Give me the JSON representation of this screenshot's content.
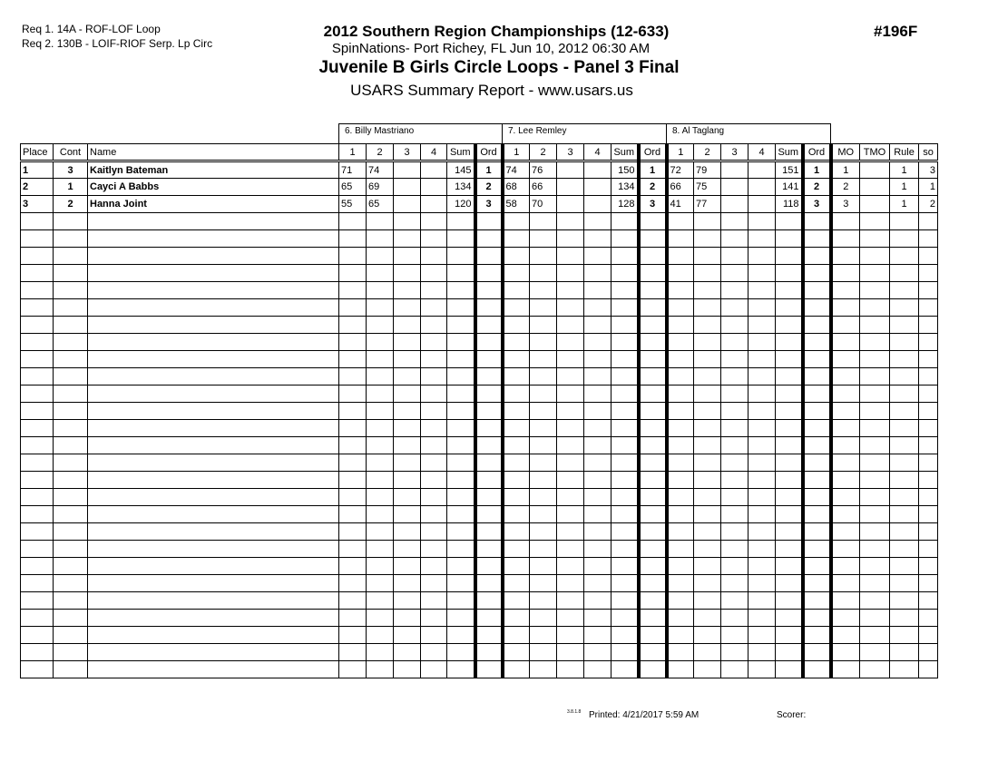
{
  "header": {
    "req1": "Req  1.  14A - ROF-LOF Loop",
    "req2": "Req  2.  130B - LOIF-RIOF Serp. Lp Circ",
    "title": "2012 Southern Region Championships (12-633)",
    "location": "SpinNations- Port Richey, FL  Jun 10, 2012  06:30 AM",
    "event": "Juvenile B Girls Circle Loops - Panel 3 Final",
    "report": "USARS Summary Report - www.usars.us",
    "event_number": "#196F"
  },
  "judges": [
    "6.  Billy Mastriano",
    "7.  Lee Remley",
    "8.  Al Taglang"
  ],
  "columns": {
    "place": "Place",
    "cont": "Cont",
    "name": "Name",
    "s1": "1",
    "s2": "2",
    "s3": "3",
    "s4": "4",
    "sum": "Sum",
    "ord": "Ord",
    "mo": "MO",
    "tmo": "TMO",
    "rule": "Rule",
    "so": "so"
  },
  "rows": [
    {
      "place": "1",
      "cont": "3",
      "name": "Kaitlyn Bateman",
      "j": [
        [
          "71",
          "74",
          "",
          "",
          "145",
          "1"
        ],
        [
          "74",
          "76",
          "",
          "",
          "150",
          "1"
        ],
        [
          "72",
          "79",
          "",
          "",
          "151",
          "1"
        ]
      ],
      "mo": "1",
      "tmo": "",
      "rule": "1",
      "so": "3"
    },
    {
      "place": "2",
      "cont": "1",
      "name": "Cayci A Babbs",
      "j": [
        [
          "65",
          "69",
          "",
          "",
          "134",
          "2"
        ],
        [
          "68",
          "66",
          "",
          "",
          "134",
          "2"
        ],
        [
          "66",
          "75",
          "",
          "",
          "141",
          "2"
        ]
      ],
      "mo": "2",
      "tmo": "",
      "rule": "1",
      "so": "1"
    },
    {
      "place": "3",
      "cont": "2",
      "name": "Hanna Joint",
      "j": [
        [
          "55",
          "65",
          "",
          "",
          "120",
          "3"
        ],
        [
          "58",
          "70",
          "",
          "",
          "128",
          "3"
        ],
        [
          "41",
          "77",
          "",
          "",
          "118",
          "3"
        ]
      ],
      "mo": "3",
      "tmo": "",
      "rule": "1",
      "so": "2"
    }
  ],
  "footer": {
    "version": "3.8.1.8",
    "printed": "Printed:  4/21/2017  5:59 AM",
    "scorer": "Scorer:"
  }
}
